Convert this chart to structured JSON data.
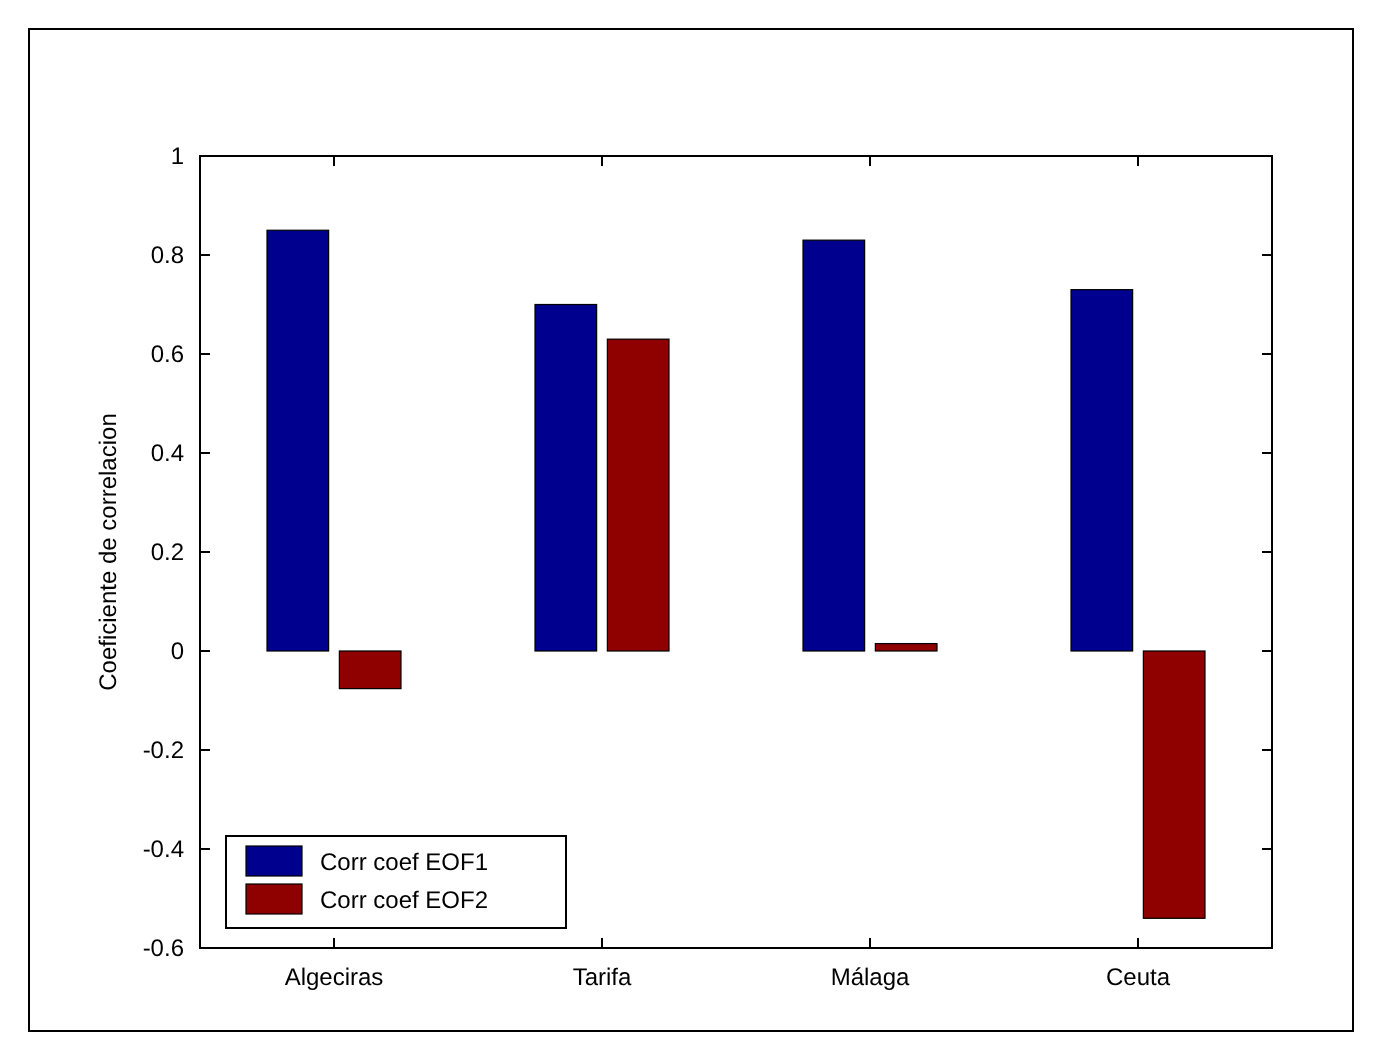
{
  "chart_data": {
    "type": "bar",
    "ylabel": "Coeficiente de correlacion",
    "categories": [
      "Algeciras",
      "Tarifa",
      "Málaga",
      "Ceuta"
    ],
    "series": [
      {
        "name": "Corr coef EOF1",
        "color": "#00008f",
        "values": [
          0.85,
          0.7,
          0.83,
          0.73
        ]
      },
      {
        "name": "Corr coef EOF2",
        "color": "#8f0000",
        "values": [
          -0.076,
          0.63,
          0.015,
          -0.54
        ]
      }
    ],
    "ylim": [
      -0.6,
      1
    ],
    "yticks": [
      -0.6,
      -0.4,
      -0.2,
      0,
      0.2,
      0.4,
      0.6,
      0.8,
      1
    ],
    "grid": false,
    "legend": "bottom left"
  }
}
